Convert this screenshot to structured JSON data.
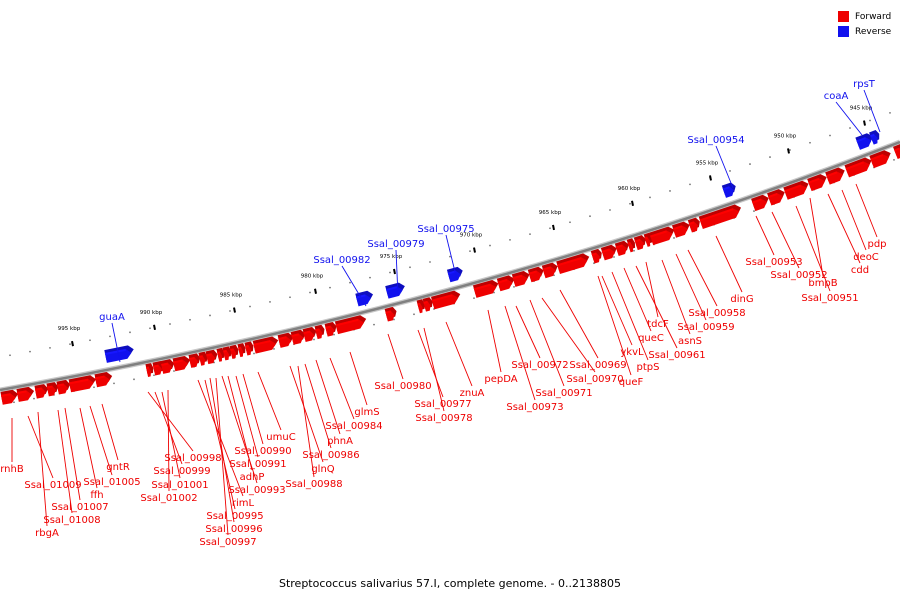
{
  "caption": "Streptococcus salivarius 57.I, complete genome. - 0..2138805",
  "legend": {
    "items": [
      {
        "label": "Forward",
        "color": "#ee0000"
      },
      {
        "label": "Reverse",
        "color": "#1111ee"
      }
    ]
  },
  "colors": {
    "forward": "#ee0000",
    "reverse": "#1111ee",
    "backbone": "#808080"
  },
  "scale_labels": [
    "995 kbp",
    "990 kbp",
    "985 kbp",
    "980 kbp",
    "975 kbp",
    "970 kbp",
    "965 kbp",
    "960 kbp",
    "955 kbp",
    "950 kbp",
    "945 kbp"
  ],
  "reverse_genes": [
    "guaA",
    "Ssal_00982",
    "Ssal_00979",
    "Ssal_00975",
    "Ssal_00954",
    "coaA",
    "rpsT"
  ],
  "forward_genes": [
    "rnhB",
    "Ssal_01009",
    "rbgA",
    "Ssal_01008",
    "Ssal_01007",
    "ffh",
    "Ssal_01005",
    "gntR",
    "Ssal_00998",
    "Ssal_00999",
    "Ssal_01001",
    "Ssal_01002",
    "rimL",
    "Ssal_00995",
    "Ssal_00996",
    "Ssal_00997",
    "Ssal_00993",
    "adhP",
    "Ssal_00991",
    "Ssal_00990",
    "umuC",
    "glnQ",
    "Ssal_00988",
    "Ssal_00986",
    "phnA",
    "Ssal_00984",
    "glmS",
    "Ssal_00980",
    "Ssal_00977",
    "Ssal_00978",
    "znuA",
    "pepDA",
    "Ssal_00973",
    "Ssal_00972",
    "Ssal_00971",
    "Ssal_00970",
    "Ssal_00969",
    "queF",
    "ykvL",
    "ptpS",
    "queC",
    "Ssal_00961",
    "tdcF",
    "asnS",
    "Ssal_00959",
    "Ssal_00958",
    "dinG",
    "Ssal_00953",
    "Ssal_00952",
    "Ssal_00951",
    "bmpB",
    "cdd",
    "deoC",
    "pdp"
  ]
}
